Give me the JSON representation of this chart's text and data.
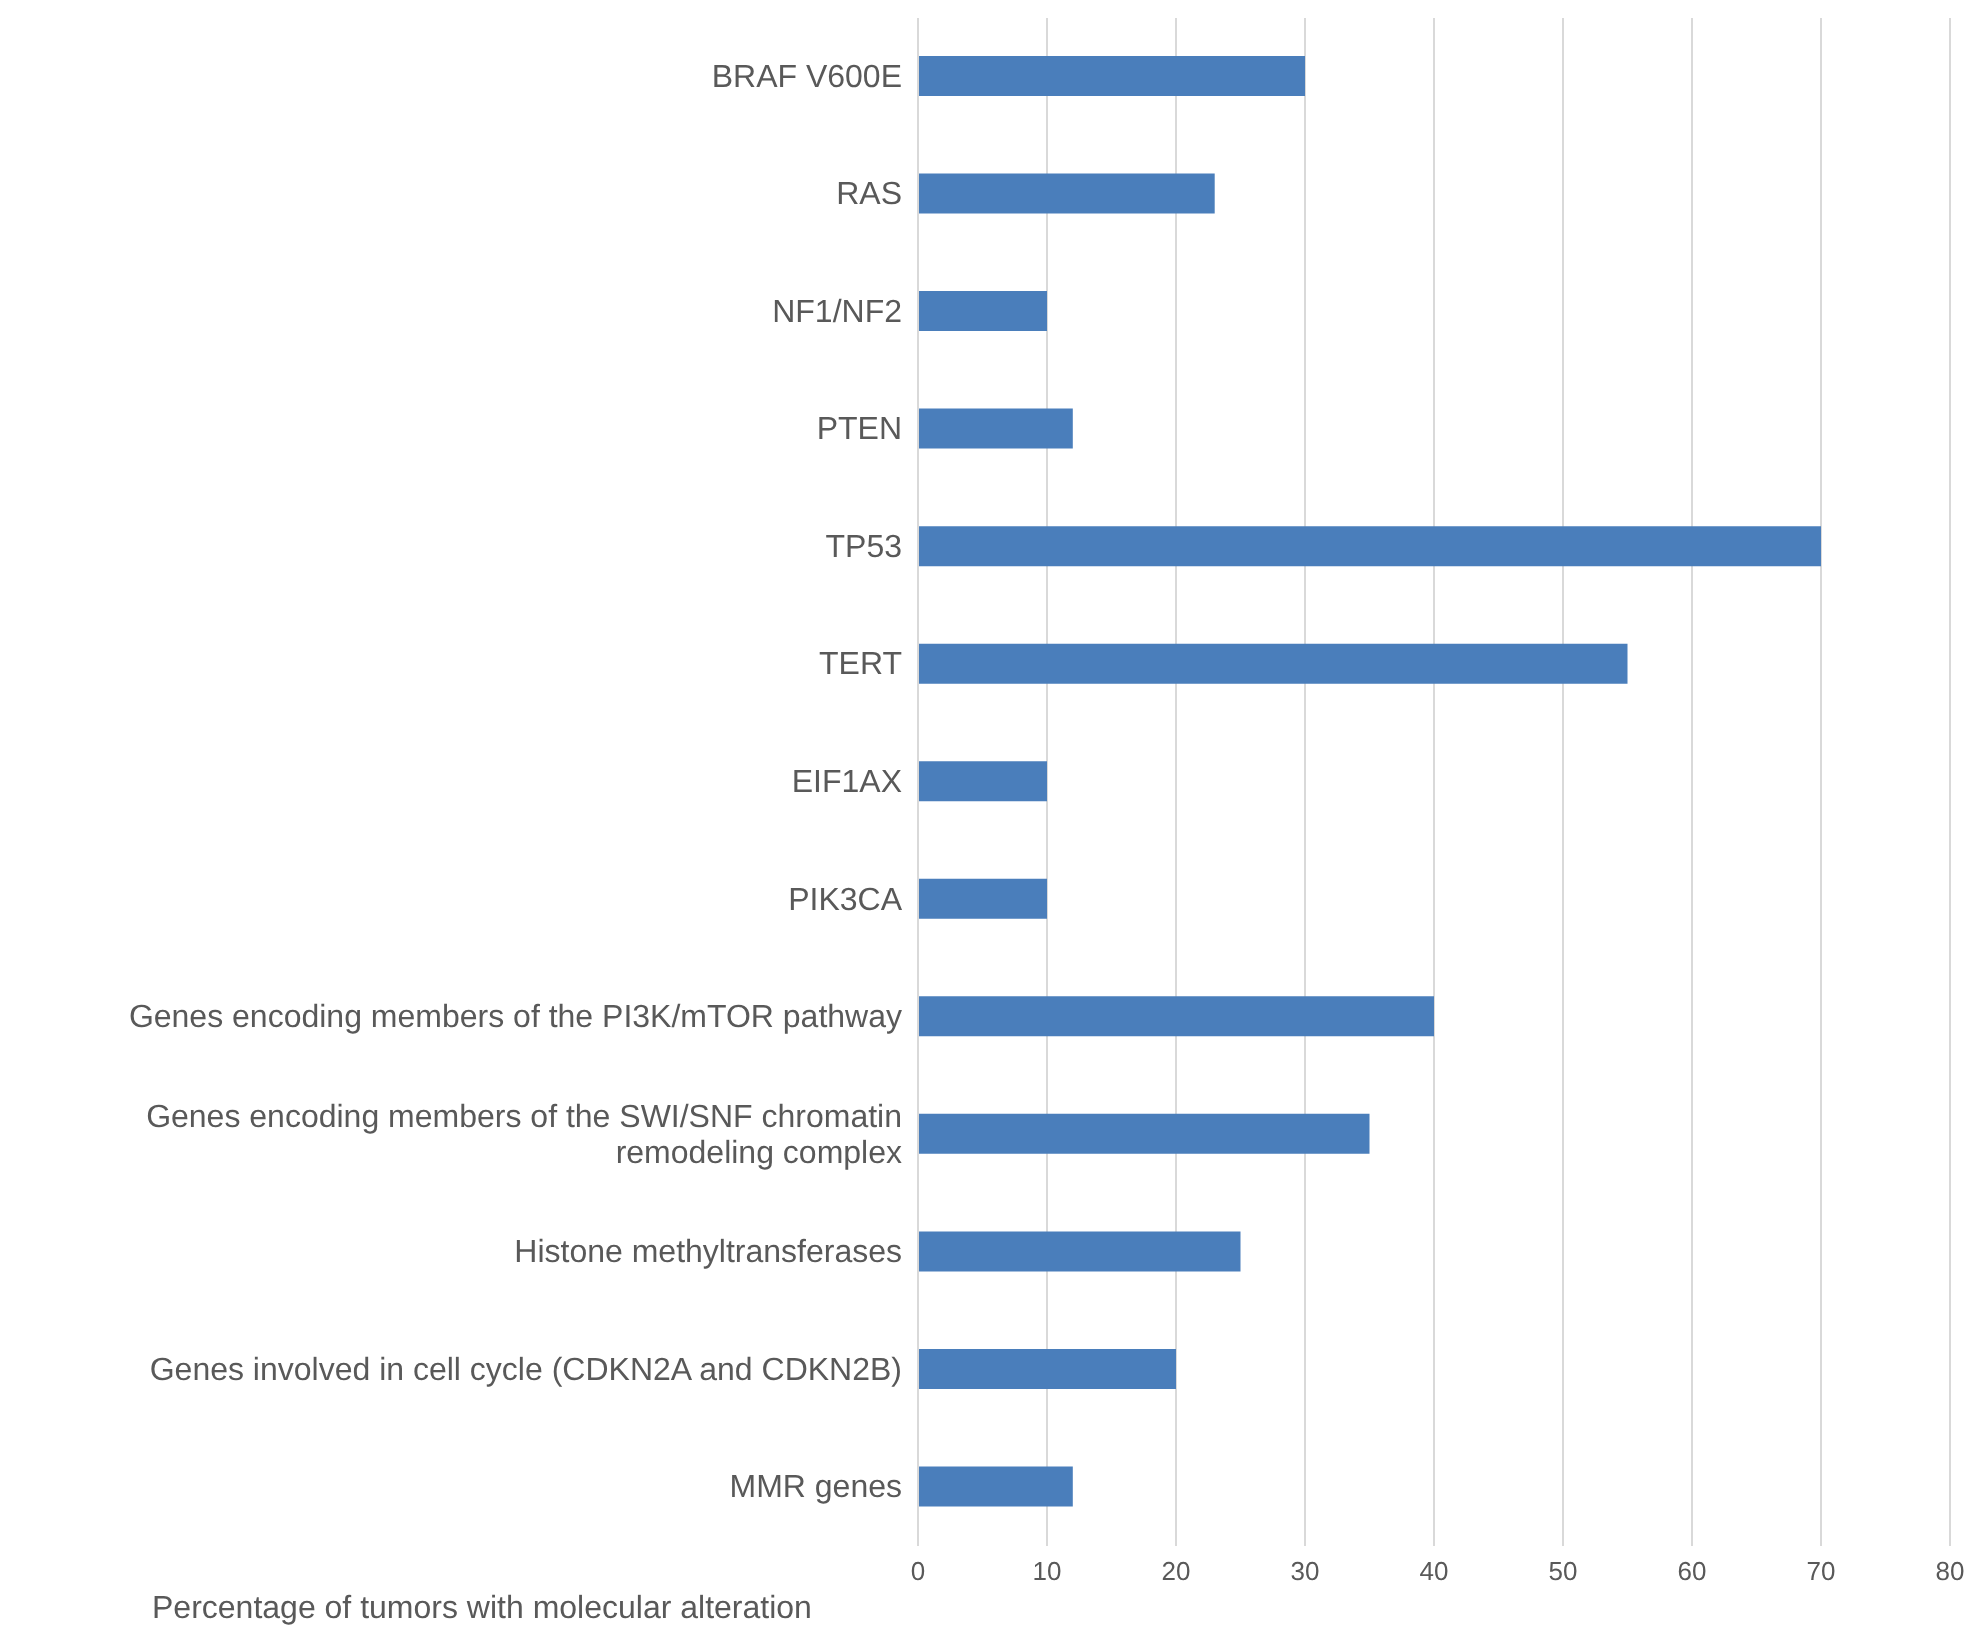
{
  "chart_data": {
    "type": "bar",
    "orientation": "horizontal",
    "xlabel": "Percentage of tumors with molecular alteration",
    "categories": [
      "BRAF V600E",
      "RAS",
      "NF1/NF2",
      "PTEN",
      "TP53",
      "TERT",
      "EIF1AX",
      "PIK3CA",
      "Genes encoding members of the PI3K/mTOR pathway",
      "Genes encoding members of the SWI/SNF chromatin remodeling complex",
      "Histone methyltransferases",
      "Genes involved in cell cycle (CDKN2A and CDKN2B)",
      "MMR genes"
    ],
    "values": [
      30,
      23,
      10,
      12,
      70,
      55,
      10,
      10,
      40,
      35,
      25,
      20,
      12
    ],
    "color": "#4a7ebb",
    "xlim": [
      0,
      80
    ],
    "xticks": [
      0,
      10,
      20,
      30,
      40,
      50,
      60,
      70,
      80
    ],
    "grid": "x",
    "legend": false
  }
}
